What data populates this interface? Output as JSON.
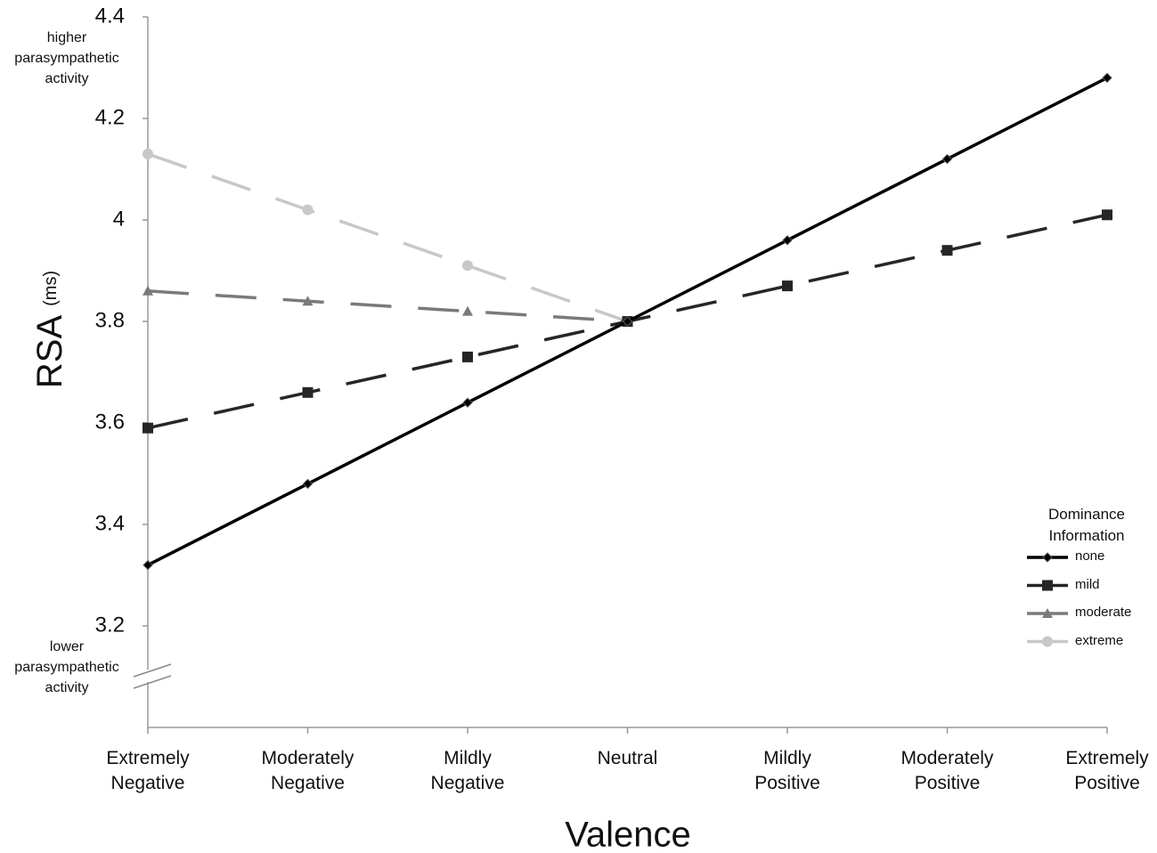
{
  "chart_data": {
    "type": "line",
    "x_label": "Valence",
    "y_label": "RSA",
    "y_unit": "(ms)",
    "annotations": [
      "higher parasympathetic activity",
      "lower parasympathetic activity"
    ],
    "categories": [
      "Extremely Negative",
      "Moderately Negative",
      "Mildly Negative",
      "Neutral",
      "Mildly Positive",
      "Moderately Positive",
      "Extremely Positive"
    ],
    "series": [
      {
        "name": "none",
        "color": "#000000",
        "style": "solid",
        "marker": "diamond",
        "values": [
          3.32,
          3.48,
          3.64,
          3.8,
          3.96,
          4.12,
          4.28
        ]
      },
      {
        "name": "mild",
        "color": "#262626",
        "style": "dashed",
        "marker": "square",
        "values": [
          3.59,
          3.66,
          3.73,
          3.8,
          3.87,
          3.94,
          4.01
        ]
      },
      {
        "name": "moderate",
        "color": "#7a7a7a",
        "style": "dashed",
        "marker": "triangle",
        "values": [
          3.86,
          3.84,
          3.82,
          3.8,
          null,
          null,
          null
        ]
      },
      {
        "name": "extreme",
        "color": "#c8c8c8",
        "style": "dashed",
        "marker": "circle",
        "values": [
          4.13,
          4.02,
          3.91,
          3.8,
          null,
          null,
          null
        ]
      }
    ],
    "legend_title": "Dominance Information",
    "legend": "right",
    "ylim": [
      3.0,
      4.4
    ],
    "yticks": [
      3.2,
      3.4,
      3.6,
      3.8,
      4,
      4.2,
      4.4
    ],
    "grid": false
  }
}
